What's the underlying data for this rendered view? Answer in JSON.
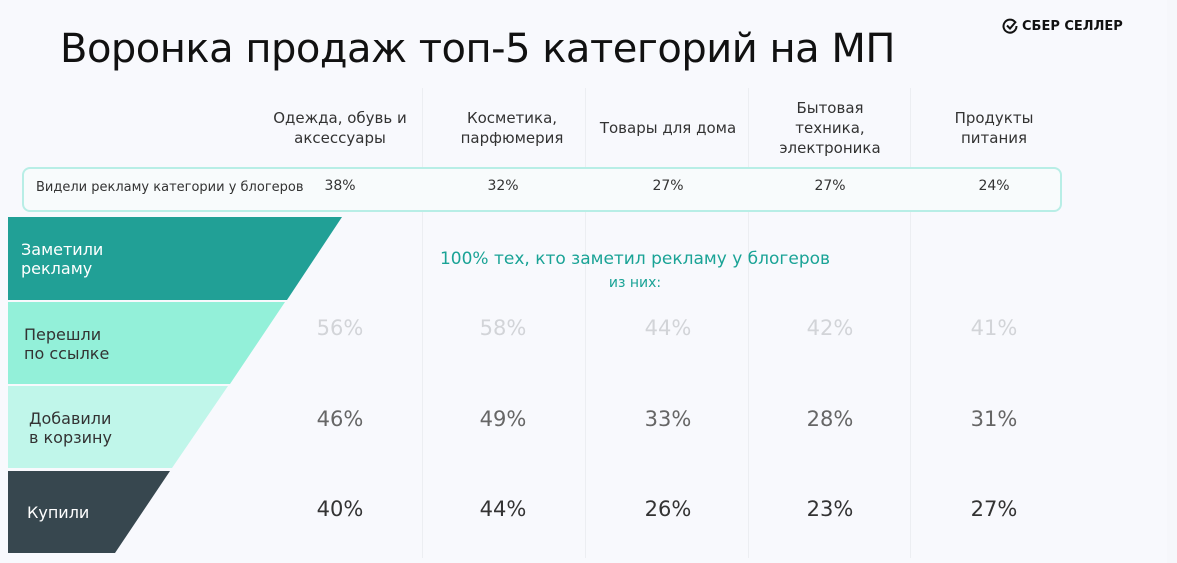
{
  "title": "Воронка продаж топ-5 категорий на МП",
  "logo": "СБЕР СЕЛЛЕР",
  "columns": [
    "Одежда, обувь и аксессуары",
    "Косметика, парфюмерия",
    "Товары для дома",
    "Бытовая техника, электроника",
    "Продукты питания"
  ],
  "seen_label": "Видели рекламу категории у блогеров",
  "note": "100% тех, кто заметил рекламу у блогеров",
  "note_sub": "из них:",
  "stages": [
    "Заметили рекламу",
    "Перешли по ссылке",
    "Добавили в корзину",
    "Купили"
  ],
  "colors": {
    "stage1": "#21a096",
    "stage2": "#93f0d9",
    "stage3": "#c0f6ea",
    "stage4": "#37474f"
  },
  "chart_data": {
    "type": "table",
    "title": "Воронка продаж топ-5 категорий на МП",
    "categories": [
      "Одежда, обувь и аксессуары",
      "Косметика, парфюмерия",
      "Товары для дома",
      "Бытовая техника, электроника",
      "Продукты питания"
    ],
    "series": [
      {
        "name": "Видели рекламу категории у блогеров",
        "values": [
          "38%",
          "32%",
          "27%",
          "27%",
          "24%"
        ]
      },
      {
        "name": "Перешли по ссылке",
        "values": [
          "56%",
          "58%",
          "44%",
          "42%",
          "41%"
        ]
      },
      {
        "name": "Добавили в корзину",
        "values": [
          "46%",
          "49%",
          "33%",
          "28%",
          "31%"
        ]
      },
      {
        "name": "Купили",
        "values": [
          "40%",
          "44%",
          "26%",
          "23%",
          "27%"
        ]
      }
    ]
  }
}
